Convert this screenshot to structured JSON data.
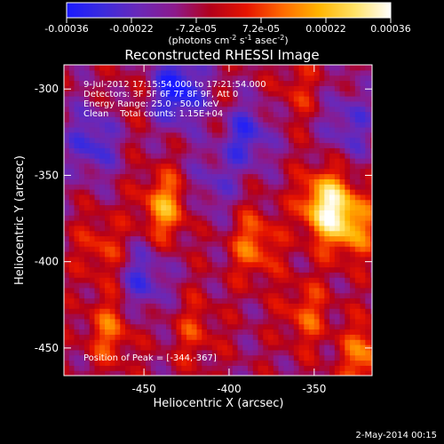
{
  "chart_data": {
    "type": "heatmap",
    "title": "Reconstructed RHESSI Image",
    "xlabel": "Heliocentric X (arcsec)",
    "ylabel": "Heliocentric Y (arcsec)",
    "xlim": [
      -497,
      -316
    ],
    "ylim": [
      -466,
      -286
    ],
    "xticks": [
      -450,
      -400,
      -350
    ],
    "yticks": [
      -300,
      -350,
      -400,
      -450
    ],
    "colorbar": {
      "ticks": [
        "-0.00036",
        "-0.00022",
        "-7.2e-05",
        "7.2e-05",
        "0.00022",
        "0.00036"
      ],
      "range": [
        -0.00036,
        0.00036
      ],
      "unit_label": "(photons cm-2 s-1 asec-2)",
      "colors": [
        "#1a1aff",
        "#3b2bdd",
        "#6a28b8",
        "#8c1a8c",
        "#b3001a",
        "#e61400",
        "#ff6a00",
        "#ffb400",
        "#ffe266",
        "#ffffff"
      ]
    },
    "annotations": [
      "9-Jul-2012 17:15:54.000 to 17:21:54.000",
      "Detectors: 3F 5F 6F 7F 8F 9F, Att 0",
      "Energy Range: 25.0 - 50.0 keV",
      "Clean    Total counts: 1.15E+04"
    ],
    "peak_text": "Position of Peak = [-344,-367]",
    "peak": {
      "x": -344,
      "y": -367
    },
    "sources": [
      {
        "x": -344,
        "y": -367,
        "value": 0.00036
      },
      {
        "x": -328,
        "y": -378,
        "value": 0.00026
      },
      {
        "x": -438,
        "y": -368,
        "value": 0.00025
      },
      {
        "x": -385,
        "y": -390,
        "value": 0.0002
      },
      {
        "x": -355,
        "y": -430,
        "value": 0.00016
      },
      {
        "x": -475,
        "y": -392,
        "value": 0.00014
      },
      {
        "x": -470,
        "y": -440,
        "value": 0.00018
      },
      {
        "x": -420,
        "y": -440,
        "value": 0.00012
      },
      {
        "x": -320,
        "y": -455,
        "value": 0.00022
      },
      {
        "x": -395,
        "y": -315,
        "value": 6e-05
      },
      {
        "x": -460,
        "y": -305,
        "value": 4e-05
      },
      {
        "x": -360,
        "y": -300,
        "value": 0.0001
      }
    ],
    "negative_regions": [
      {
        "x": -430,
        "y": -300,
        "value": -0.0003
      },
      {
        "x": -390,
        "y": -325,
        "value": -0.00024
      },
      {
        "x": -480,
        "y": -330,
        "value": -0.0002
      },
      {
        "x": -450,
        "y": -410,
        "value": -0.00018
      },
      {
        "x": -330,
        "y": -320,
        "value": -0.00016
      },
      {
        "x": -410,
        "y": -355,
        "value": -0.00012
      }
    ],
    "grid": false
  },
  "footer": {
    "date": "2-May-2014 00:15"
  }
}
